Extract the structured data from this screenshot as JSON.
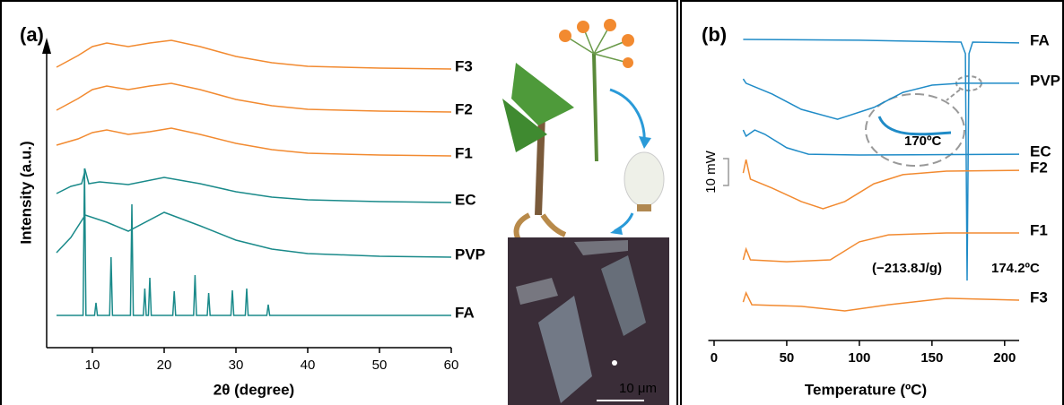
{
  "chart_data": [
    {
      "type": "line",
      "panel": "(a)",
      "xlabel": "2θ (degree)",
      "ylabel": "Intensity (a.u.)",
      "xlim": [
        5,
        60
      ],
      "xticks": [
        10,
        20,
        30,
        40,
        50,
        60
      ],
      "ylim": [
        0,
        345
      ],
      "annotations": [
        "10 μm"
      ],
      "series": [
        {
          "name": "F3",
          "color": "#f28a30",
          "x": [
            5,
            8,
            10,
            12,
            15,
            18,
            21,
            25,
            30,
            35,
            40,
            50,
            60
          ],
          "values": [
            310,
            323,
            333,
            337,
            333,
            337,
            340,
            333,
            322,
            315,
            311,
            309,
            308
          ]
        },
        {
          "name": "F2",
          "color": "#f28a30",
          "x": [
            5,
            8,
            10,
            12,
            15,
            18,
            21,
            25,
            30,
            35,
            40,
            50,
            60
          ],
          "values": [
            262,
            275,
            285,
            289,
            285,
            289,
            292,
            285,
            274,
            267,
            263,
            261,
            260
          ]
        },
        {
          "name": "F1",
          "color": "#f28a30",
          "x": [
            5,
            8,
            10,
            12,
            15,
            18,
            21,
            25,
            30,
            35,
            40,
            50,
            60
          ],
          "values": [
            223,
            230,
            237,
            240,
            235,
            238,
            242,
            235,
            225,
            218,
            214,
            212,
            211
          ]
        },
        {
          "name": "EC",
          "color": "#1a8a8a",
          "x": [
            5,
            7,
            8.5,
            9,
            9.5,
            11,
            15,
            20,
            25,
            30,
            35,
            40,
            50,
            60
          ],
          "values": [
            169,
            177,
            180,
            195,
            180,
            182,
            179,
            187,
            180,
            171,
            165,
            162,
            160,
            159
          ]
        },
        {
          "name": "PVP",
          "color": "#1a8a8a",
          "x": [
            5,
            7,
            9,
            12,
            15,
            20,
            25,
            30,
            35,
            40,
            50,
            60
          ],
          "values": [
            103,
            120,
            145,
            137,
            127,
            148,
            133,
            117,
            107,
            102,
            99,
            98
          ]
        },
        {
          "name": "FA",
          "color": "#1a8a8a",
          "x": [
            5,
            8.7,
            8.9,
            9.1,
            10.3,
            10.5,
            10.7,
            12.4,
            12.6,
            12.8,
            15.3,
            15.5,
            15.7,
            17.1,
            17.3,
            17.5,
            17.8,
            18,
            18.2,
            21.2,
            21.4,
            21.6,
            24.1,
            24.3,
            24.5,
            26,
            26.2,
            26.4,
            29.3,
            29.5,
            29.7,
            31.3,
            31.5,
            31.7,
            34.3,
            34.5,
            34.7,
            60
          ],
          "values": [
            33,
            33,
            197,
            33,
            33,
            47,
            33,
            33,
            98,
            33,
            33,
            157,
            33,
            33,
            63,
            33,
            33,
            75,
            33,
            33,
            60,
            33,
            33,
            78,
            33,
            33,
            58,
            33,
            33,
            61,
            33,
            33,
            63,
            33,
            33,
            45,
            33,
            33
          ]
        }
      ]
    },
    {
      "type": "line",
      "panel": "(b)",
      "xlabel": "Temperature (ºC)",
      "xlim": [
        -4,
        210
      ],
      "xticks": [
        0,
        50,
        100,
        150,
        200
      ],
      "ylim": [
        0,
        120
      ],
      "annotations": [
        "170ºC",
        "(−213.8J/g)",
        "174.2ºC",
        "10 mW"
      ],
      "series": [
        {
          "name": "FA",
          "color": "#1f8bc7",
          "x": [
            20,
            100,
            170,
            173,
            174.2,
            175.5,
            178,
            210
          ],
          "values": [
            112,
            111.7,
            111,
            106.7,
            22.3,
            106.7,
            111,
            110.7
          ]
        },
        {
          "name": "PVP",
          "color": "#1f8bc7",
          "x": [
            20,
            22,
            40,
            60,
            85,
            110,
            130,
            150,
            170,
            210
          ],
          "values": [
            97.3,
            95.7,
            91.7,
            86,
            82.3,
            86.7,
            92.3,
            95,
            95.7,
            95.7
          ]
        },
        {
          "name": "EC",
          "color": "#1f8bc7",
          "x": [
            20,
            22,
            28,
            35,
            50,
            65,
            100,
            210
          ],
          "values": [
            78.3,
            76,
            78.3,
            76.7,
            71.7,
            69.3,
            69,
            69.3
          ]
        },
        {
          "name": "F2",
          "color": "#f28a30",
          "x": [
            20,
            22,
            25,
            40,
            60,
            75,
            90,
            110,
            130,
            160,
            210
          ],
          "values": [
            62.3,
            67.3,
            60,
            56.7,
            51.7,
            49,
            51.7,
            58.3,
            61.7,
            63,
            63.3
          ]
        },
        {
          "name": "F1",
          "color": "#f28a30",
          "x": [
            20,
            22,
            25,
            50,
            80,
            100,
            120,
            160,
            210
          ],
          "values": [
            30,
            34,
            30,
            29.3,
            30,
            36.7,
            39.3,
            40,
            40
          ]
        },
        {
          "name": "F3",
          "color": "#f28a30",
          "x": [
            20,
            22,
            26,
            60,
            90,
            120,
            160,
            210
          ],
          "values": [
            14.3,
            17.7,
            13.3,
            12.7,
            11,
            13.3,
            15.7,
            15
          ]
        }
      ]
    }
  ]
}
